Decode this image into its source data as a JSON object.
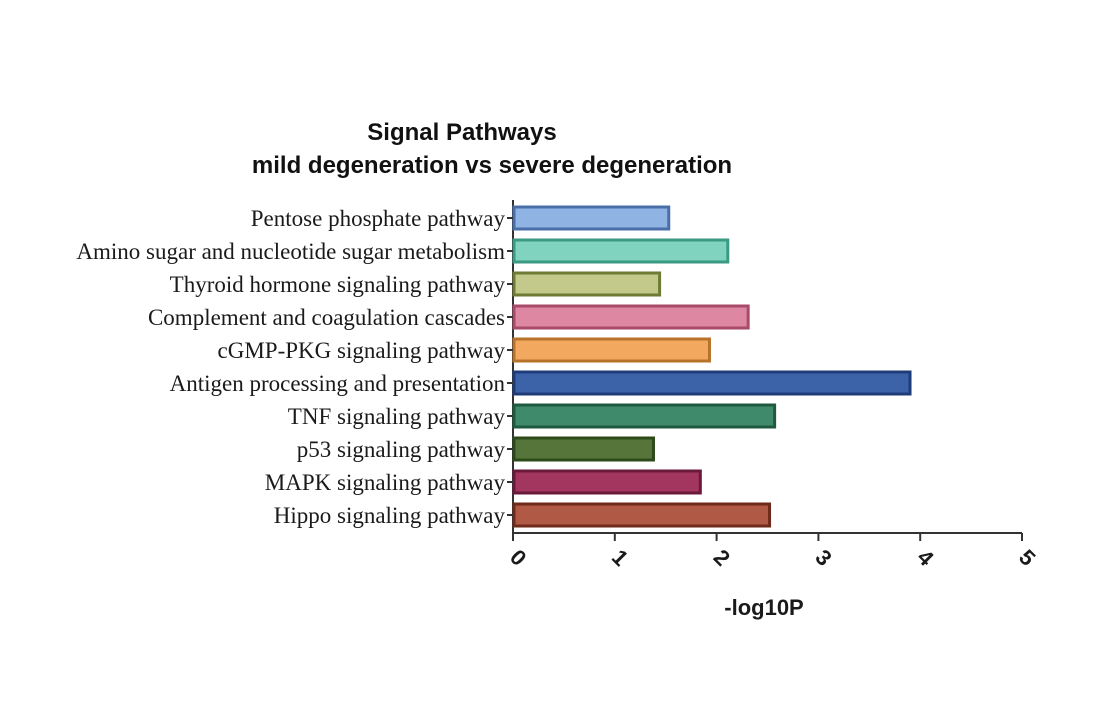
{
  "chart_data": {
    "type": "bar",
    "orientation": "horizontal",
    "title": "Signal Pathways",
    "subtitle": "mild degeneration vs severe degeneration",
    "xlabel": "-log10P",
    "ylabel": "",
    "xlim": [
      0,
      5
    ],
    "xticks": [
      "0",
      "1",
      "2",
      "3",
      "4",
      "5"
    ],
    "grid": false,
    "categories": [
      "Pentose phosphate pathway",
      "Amino sugar and nucleotide sugar metabolism",
      "Thyroid hormone signaling pathway",
      "Complement and coagulation cascades",
      "cGMP-PKG signaling pathway",
      "Antigen processing and presentation",
      "TNF signaling pathway",
      "p53 signaling pathway",
      "MAPK signaling pathway",
      "Hippo signaling pathway"
    ],
    "values": [
      1.53,
      2.11,
      1.44,
      2.31,
      1.93,
      3.9,
      2.57,
      1.38,
      1.84,
      2.52
    ],
    "colors": [
      {
        "fill": "#8fb3e3",
        "stroke": "#4a6fa8"
      },
      {
        "fill": "#7fd3bf",
        "stroke": "#3a9a82"
      },
      {
        "fill": "#c3c98a",
        "stroke": "#6f7a32"
      },
      {
        "fill": "#dd87a3",
        "stroke": "#a84a6a"
      },
      {
        "fill": "#f2a85f",
        "stroke": "#b8732b"
      },
      {
        "fill": "#3c63a8",
        "stroke": "#1f3c78"
      },
      {
        "fill": "#3f8a6a",
        "stroke": "#1f5a40"
      },
      {
        "fill": "#55753a",
        "stroke": "#2d4a1a"
      },
      {
        "fill": "#a3365e",
        "stroke": "#6a1a38"
      },
      {
        "fill": "#b05a45",
        "stroke": "#6e2a1a"
      }
    ]
  }
}
